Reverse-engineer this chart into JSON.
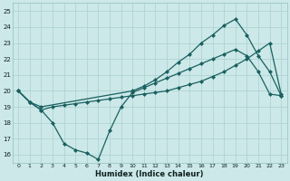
{
  "xlabel": "Humidex (Indice chaleur)",
  "xlim": [
    -0.5,
    23.5
  ],
  "ylim": [
    15.5,
    25.5
  ],
  "xticks": [
    0,
    1,
    2,
    3,
    4,
    5,
    6,
    7,
    8,
    9,
    10,
    11,
    12,
    13,
    14,
    15,
    16,
    17,
    18,
    19,
    20,
    21,
    22,
    23
  ],
  "yticks": [
    16,
    17,
    18,
    19,
    20,
    21,
    22,
    23,
    24,
    25
  ],
  "bg_color": "#cce8e8",
  "grid_color": "#aad0d0",
  "line_color": "#1a6060",
  "line1_x": [
    0,
    1,
    2,
    3,
    4,
    5,
    6,
    7,
    8,
    9,
    10,
    11,
    12,
    13,
    14,
    15,
    16,
    17,
    18,
    19,
    20,
    21,
    22,
    23
  ],
  "line1_y": [
    20.0,
    19.3,
    18.8,
    18.0,
    16.7,
    16.3,
    16.1,
    15.7,
    17.5,
    19.0,
    19.9,
    20.2,
    20.5,
    20.8,
    21.1,
    21.4,
    21.7,
    22.0,
    22.3,
    22.6,
    22.2,
    21.2,
    19.8,
    19.7
  ],
  "line2_x": [
    0,
    1,
    2,
    10,
    11,
    12,
    13,
    14,
    15,
    16,
    17,
    18,
    19,
    20,
    21,
    22,
    23
  ],
  "line2_y": [
    20.0,
    19.3,
    19.0,
    20.0,
    20.3,
    20.7,
    21.2,
    21.8,
    22.3,
    23.0,
    23.5,
    24.1,
    24.5,
    23.5,
    22.2,
    21.2,
    19.7
  ],
  "line3_x": [
    0,
    1,
    2,
    3,
    4,
    5,
    6,
    7,
    8,
    9,
    10,
    11,
    12,
    13,
    14,
    15,
    16,
    17,
    18,
    19,
    20,
    21,
    22,
    23
  ],
  "line3_y": [
    20.0,
    19.3,
    18.8,
    19.0,
    19.1,
    19.2,
    19.3,
    19.4,
    19.5,
    19.6,
    19.7,
    19.8,
    19.9,
    20.0,
    20.2,
    20.4,
    20.6,
    20.9,
    21.2,
    21.6,
    22.0,
    22.5,
    23.0,
    19.8
  ],
  "marker_size": 2.5,
  "line_width": 0.9
}
